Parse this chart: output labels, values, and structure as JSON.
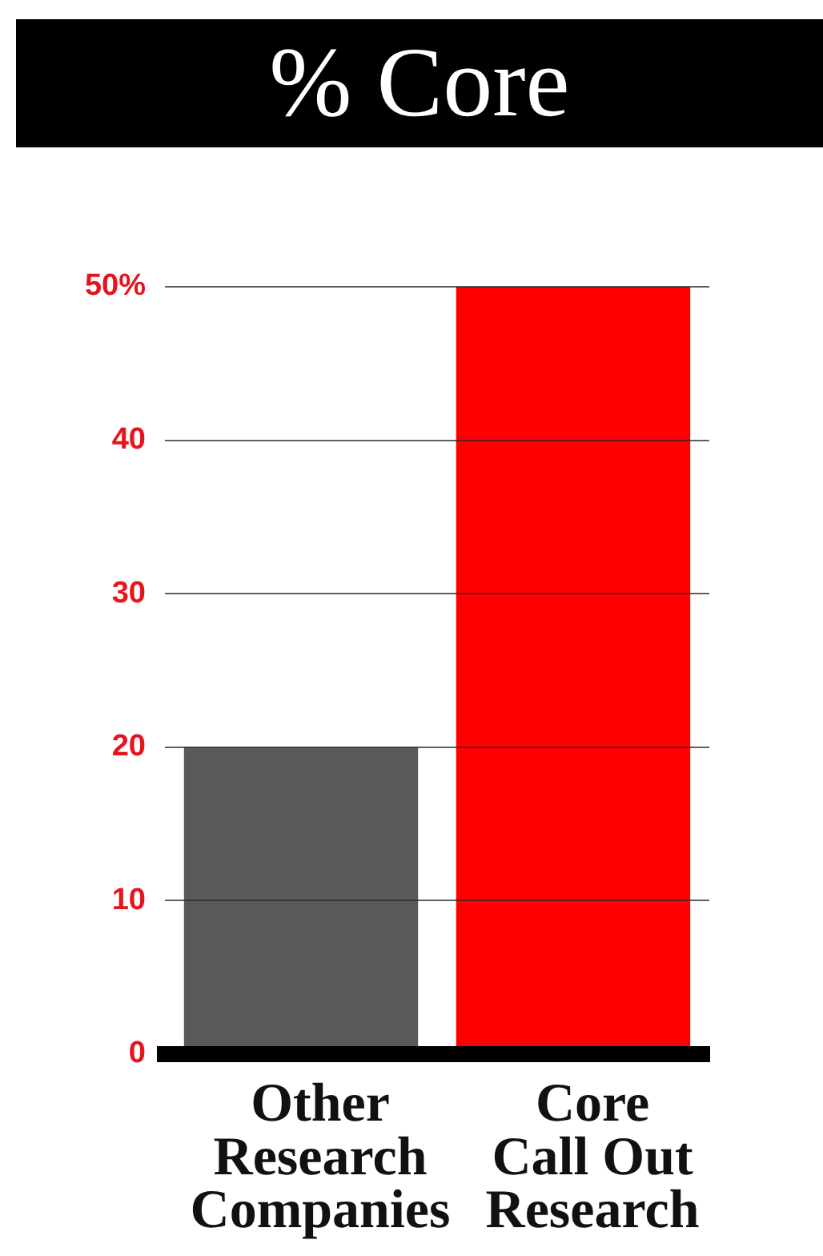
{
  "chart_data": {
    "type": "bar",
    "title": "% Core",
    "categories": [
      "Other Research Companies",
      "Core Call Out Research"
    ],
    "values": [
      20,
      50
    ],
    "colors": [
      "#595959",
      "#ff0000"
    ],
    "ylim": [
      0,
      50
    ],
    "yticks": [
      0,
      10,
      20,
      30,
      40,
      {
        "value": 50,
        "label": "50%"
      }
    ],
    "grid": "y"
  }
}
